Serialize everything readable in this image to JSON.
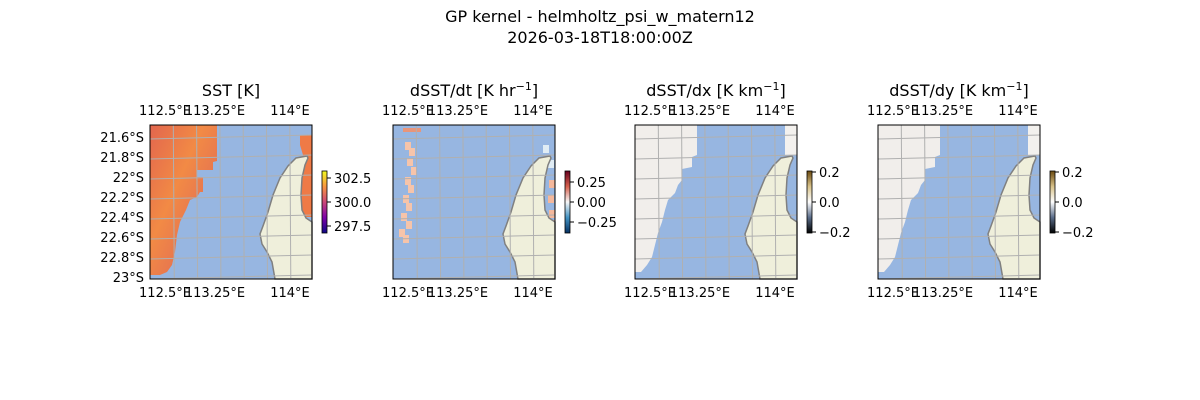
{
  "figure": {
    "title": "GP kernel - helmholtz_psi_w_matern12",
    "subtitle": "2026-03-18T18:00:00Z"
  },
  "colors": {
    "ocean": "#97b6e1",
    "land": "#efefdb",
    "coast": "#808080",
    "grid": "#b0b0b0"
  },
  "lon_labels": [
    "112.5°E",
    "113.25°E",
    "114°E"
  ],
  "lat_labels": [
    "21.6°S",
    "21.8°S",
    "22°S",
    "22.2°S",
    "22.4°S",
    "22.6°S",
    "22.8°S",
    "23°S"
  ],
  "panels": [
    {
      "title": "SST [K]",
      "title_sup": "",
      "title_end": "",
      "colorbar_ticks": [
        "302.5",
        "300.0",
        "297.5"
      ],
      "colormap": [
        "#0d0887",
        "#7e03a8",
        "#cc4778",
        "#f89540",
        "#f0f921"
      ],
      "field": "sst",
      "show_lat_labels": true
    },
    {
      "title": "dSST/dt [K hr",
      "title_sup": "−1",
      "title_end": "]",
      "colorbar_ticks": [
        "0.25",
        "0.00",
        "−0.25"
      ],
      "colormap": [
        "#053061",
        "#4393c3",
        "#f7f7f7",
        "#d6604d",
        "#67001f"
      ],
      "field": "dt",
      "show_lat_labels": false
    },
    {
      "title": "dSST/dx [K km",
      "title_sup": "−1",
      "title_end": "]",
      "colorbar_ticks": [
        "0.2",
        "0.0",
        "−0.2"
      ],
      "colormap": [
        "#000000",
        "#5a6d8a",
        "#ffffff",
        "#d8c28a",
        "#6b4a10"
      ],
      "field": "grad",
      "show_lat_labels": false
    },
    {
      "title": "dSST/dy [K km",
      "title_sup": "−1",
      "title_end": "]",
      "colorbar_ticks": [
        "0.2",
        "0.0",
        "−0.2"
      ],
      "colormap": [
        "#000000",
        "#5a6d8a",
        "#ffffff",
        "#d8c28a",
        "#6b4a10"
      ],
      "field": "grad",
      "show_lat_labels": false
    }
  ]
}
